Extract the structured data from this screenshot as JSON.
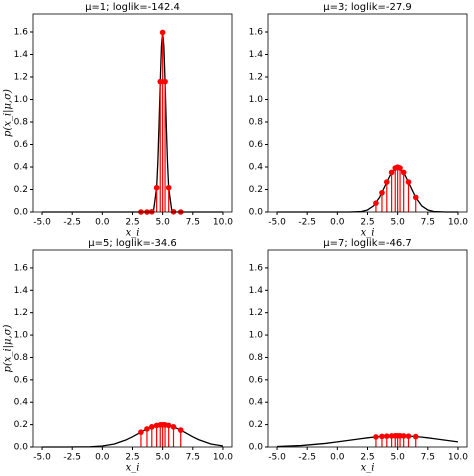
{
  "chart_data": [
    {
      "type": "line",
      "title": "μ=1; loglik=-142.4",
      "xlabel": "x_i",
      "ylabel": "p(x_i|μ,σ)",
      "xlim": [
        -5.75,
        10.75
      ],
      "ylim": [
        0,
        1.76
      ],
      "xticks": [
        {
          "value": -5,
          "label": "-5.0"
        },
        {
          "value": -2.5,
          "label": "-2.5"
        },
        {
          "value": 0,
          "label": "0.0"
        },
        {
          "value": 2.5,
          "label": "2.5"
        },
        {
          "value": 5,
          "label": "5.0"
        },
        {
          "value": 7.5,
          "label": "7.5"
        },
        {
          "value": 10,
          "label": "10.0"
        }
      ],
      "yticks": [
        {
          "value": 0,
          "label": "0.0"
        },
        {
          "value": 0.2,
          "label": "0.2"
        },
        {
          "value": 0.4,
          "label": "0.4"
        },
        {
          "value": 0.6,
          "label": "0.6"
        },
        {
          "value": 0.8,
          "label": "0.8"
        },
        {
          "value": 1.0,
          "label": "1.0"
        },
        {
          "value": 1.2,
          "label": "1.2"
        },
        {
          "value": 1.4,
          "label": "1.4"
        },
        {
          "value": 1.6,
          "label": "1.6"
        }
      ],
      "curve": {
        "color": "#000000",
        "x": [
          -5,
          3,
          4,
          4.25,
          4.5,
          4.6,
          4.7,
          4.8,
          4.9,
          5,
          5.1,
          5.2,
          5.3,
          5.4,
          5.5,
          5.75,
          6,
          7,
          10
        ],
        "values": [
          0,
          0,
          0.001,
          0.018,
          0.216,
          0.444,
          0.777,
          1.159,
          1.473,
          1.596,
          1.473,
          1.159,
          0.777,
          0.444,
          0.216,
          0.018,
          0.001,
          0,
          0
        ]
      },
      "points": {
        "color": "#ff0000",
        "x": [
          3.2,
          3.7,
          4.1,
          4.5,
          4.8,
          5.0,
          5.2,
          5.5,
          5.9,
          6.5
        ],
        "values": [
          0,
          0,
          0.002,
          0.216,
          1.159,
          1.596,
          1.159,
          0.216,
          0.002,
          0
        ]
      }
    },
    {
      "type": "line",
      "title": "μ=3; loglik=-27.9",
      "xlabel": "x_i",
      "xlim": [
        -5.75,
        10.75
      ],
      "ylim": [
        0,
        1.76
      ],
      "xticks": [
        {
          "value": -5,
          "label": "-5.0"
        },
        {
          "value": -2.5,
          "label": "-2.5"
        },
        {
          "value": 0,
          "label": "0.0"
        },
        {
          "value": 2.5,
          "label": "2.5"
        },
        {
          "value": 5,
          "label": "5.0"
        },
        {
          "value": 7.5,
          "label": "7.5"
        },
        {
          "value": 10,
          "label": "10.0"
        }
      ],
      "yticks": [
        {
          "value": 0,
          "label": "0.0"
        },
        {
          "value": 0.2,
          "label": "0.2"
        },
        {
          "value": 0.4,
          "label": "0.4"
        },
        {
          "value": 0.6,
          "label": "0.6"
        },
        {
          "value": 0.8,
          "label": "0.8"
        },
        {
          "value": 1.0,
          "label": "1.0"
        },
        {
          "value": 1.2,
          "label": "1.2"
        },
        {
          "value": 1.4,
          "label": "1.4"
        },
        {
          "value": 1.6,
          "label": "1.6"
        }
      ],
      "curve": {
        "color": "#000000",
        "x": [
          -5,
          -3,
          -1,
          0,
          1,
          2,
          2.5,
          3,
          3.5,
          4,
          4.5,
          5,
          5.5,
          6,
          6.5,
          7,
          7.5,
          8,
          9,
          10
        ],
        "values": [
          0,
          0,
          0,
          0,
          0,
          0.004,
          0.018,
          0.054,
          0.13,
          0.242,
          0.352,
          0.399,
          0.352,
          0.242,
          0.13,
          0.054,
          0.018,
          0.004,
          0,
          0
        ]
      },
      "points": {
        "color": "#ff0000",
        "x": [
          3.2,
          3.7,
          4.1,
          4.5,
          4.8,
          5.0,
          5.2,
          5.5,
          5.9,
          6.5
        ],
        "values": [
          0.079,
          0.171,
          0.266,
          0.352,
          0.391,
          0.399,
          0.391,
          0.352,
          0.266,
          0.13
        ]
      }
    },
    {
      "type": "line",
      "title": "μ=5; loglik=-34.6",
      "xlabel": "x_i",
      "ylabel": "p(x_i|μ,σ)",
      "xlim": [
        -5.75,
        10.75
      ],
      "ylim": [
        0,
        1.76
      ],
      "xticks": [
        {
          "value": -5,
          "label": "-5.0"
        },
        {
          "value": -2.5,
          "label": "-2.5"
        },
        {
          "value": 0,
          "label": "0.0"
        },
        {
          "value": 2.5,
          "label": "2.5"
        },
        {
          "value": 5,
          "label": "5.0"
        },
        {
          "value": 7.5,
          "label": "7.5"
        },
        {
          "value": 10,
          "label": "10.0"
        }
      ],
      "yticks": [
        {
          "value": 0,
          "label": "0.0"
        },
        {
          "value": 0.2,
          "label": "0.2"
        },
        {
          "value": 0.4,
          "label": "0.4"
        },
        {
          "value": 0.6,
          "label": "0.6"
        },
        {
          "value": 0.8,
          "label": "0.8"
        },
        {
          "value": 1.0,
          "label": "1.0"
        },
        {
          "value": 1.2,
          "label": "1.2"
        },
        {
          "value": 1.4,
          "label": "1.4"
        },
        {
          "value": 1.6,
          "label": "1.6"
        }
      ],
      "curve": {
        "color": "#000000",
        "x": [
          -5,
          -3,
          -1,
          0,
          1,
          2,
          2.5,
          3,
          3.5,
          4,
          4.5,
          5,
          5.5,
          6,
          6.5,
          7,
          7.5,
          8,
          9,
          10
        ],
        "values": [
          0,
          0,
          0.002,
          0.009,
          0.027,
          0.065,
          0.091,
          0.121,
          0.151,
          0.176,
          0.193,
          0.2,
          0.193,
          0.176,
          0.151,
          0.121,
          0.091,
          0.065,
          0.027,
          0.009
        ]
      },
      "points": {
        "color": "#ff0000",
        "x": [
          3.2,
          3.7,
          4.1,
          4.5,
          4.8,
          5.0,
          5.2,
          5.5,
          5.9,
          6.5
        ],
        "values": [
          0.133,
          0.162,
          0.18,
          0.193,
          0.198,
          0.2,
          0.198,
          0.193,
          0.18,
          0.151
        ]
      }
    },
    {
      "type": "line",
      "title": "μ=7; loglik=-46.7",
      "xlabel": "x_i",
      "xlim": [
        -5.75,
        10.75
      ],
      "ylim": [
        0,
        1.76
      ],
      "xticks": [
        {
          "value": -5,
          "label": "-5.0"
        },
        {
          "value": -2.5,
          "label": "-2.5"
        },
        {
          "value": 0,
          "label": "0.0"
        },
        {
          "value": 2.5,
          "label": "2.5"
        },
        {
          "value": 5,
          "label": "5.0"
        },
        {
          "value": 7.5,
          "label": "7.5"
        },
        {
          "value": 10,
          "label": "10.0"
        }
      ],
      "yticks": [
        {
          "value": 0,
          "label": "0.0"
        },
        {
          "value": 0.2,
          "label": "0.2"
        },
        {
          "value": 0.4,
          "label": "0.4"
        },
        {
          "value": 0.6,
          "label": "0.6"
        },
        {
          "value": 0.8,
          "label": "0.8"
        },
        {
          "value": 1.0,
          "label": "1.0"
        },
        {
          "value": 1.2,
          "label": "1.2"
        },
        {
          "value": 1.4,
          "label": "1.4"
        },
        {
          "value": 1.6,
          "label": "1.6"
        }
      ],
      "curve": {
        "color": "#000000",
        "x": [
          -5,
          -3,
          -1,
          0,
          1,
          2,
          2.5,
          3,
          3.5,
          4,
          4.5,
          5,
          5.5,
          6,
          6.5,
          7,
          7.5,
          8,
          9,
          10
        ],
        "values": [
          0.004,
          0.013,
          0.032,
          0.046,
          0.06,
          0.075,
          0.082,
          0.088,
          0.093,
          0.097,
          0.099,
          0.1,
          0.099,
          0.097,
          0.093,
          0.088,
          0.082,
          0.075,
          0.06,
          0.046
        ]
      },
      "points": {
        "color": "#ff0000",
        "x": [
          3.2,
          3.7,
          4.1,
          4.5,
          4.8,
          5.0,
          5.2,
          5.5,
          5.9,
          6.5
        ],
        "values": [
          0.09,
          0.095,
          0.097,
          0.099,
          0.1,
          0.1,
          0.1,
          0.099,
          0.097,
          0.093
        ]
      }
    }
  ]
}
